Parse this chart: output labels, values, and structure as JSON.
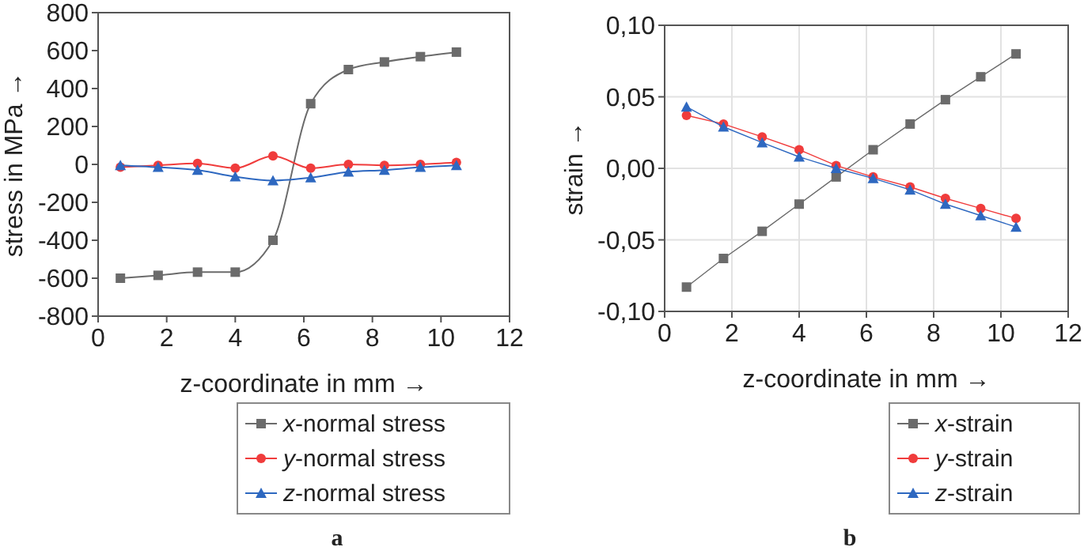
{
  "chart_data": [
    {
      "type": "line",
      "xlabel": "z-coordinate in mm →",
      "ylabel": "stress in MPa →",
      "xlim": [
        0,
        12
      ],
      "xticks": [
        0,
        2,
        4,
        6,
        8,
        10,
        12
      ],
      "ylim": [
        -800,
        800
      ],
      "yticks": [
        -800,
        -600,
        -400,
        -200,
        0,
        200,
        400,
        600,
        800
      ],
      "grid": false,
      "legend": "bottom right",
      "annotations": [
        "a"
      ],
      "x": [
        0.65,
        1.75,
        2.9,
        4.0,
        5.1,
        6.2,
        7.3,
        8.35,
        9.4,
        10.45
      ],
      "series": [
        {
          "name": "x-normal stress",
          "color": "#6b6b6b",
          "marker": "square",
          "values": [
            -600,
            -585,
            -568,
            -568,
            -400,
            320,
            500,
            540,
            568,
            592
          ]
        },
        {
          "name": "y-normal stress",
          "color": "#f03c3c",
          "marker": "circle",
          "values": [
            -15,
            -5,
            5,
            -20,
            45,
            -20,
            0,
            -5,
            0,
            10
          ]
        },
        {
          "name": "z-normal stress",
          "color": "#2e68c0",
          "marker": "triangle",
          "values": [
            -5,
            -15,
            -30,
            -65,
            -85,
            -70,
            -40,
            -30,
            -15,
            -5
          ]
        }
      ]
    },
    {
      "type": "line",
      "xlabel": "z-coordinate in mm →",
      "ylabel": "strain →",
      "xlim": [
        0,
        12
      ],
      "xticks": [
        0,
        2,
        4,
        6,
        8,
        10,
        12
      ],
      "ylim": [
        -0.1,
        0.1
      ],
      "yticks": [
        {
          "value": -0.1,
          "label": "-0,10"
        },
        {
          "value": -0.05,
          "label": "-0,05"
        },
        {
          "value": 0,
          "label": "0,00"
        },
        {
          "value": 0.05,
          "label": "0,05"
        },
        {
          "value": 0.1,
          "label": "0,10"
        }
      ],
      "grid": true,
      "legend": "bottom right",
      "annotations": [
        "b"
      ],
      "x": [
        0.65,
        1.75,
        2.9,
        4.0,
        5.1,
        6.2,
        7.3,
        8.35,
        9.4,
        10.45
      ],
      "series": [
        {
          "name": "x-strain",
          "color": "#6b6b6b",
          "marker": "square",
          "values": [
            -0.083,
            -0.063,
            -0.044,
            -0.025,
            -0.006,
            0.013,
            0.031,
            0.048,
            0.064,
            0.08
          ]
        },
        {
          "name": "y-strain",
          "color": "#f03c3c",
          "marker": "circle",
          "values": [
            0.037,
            0.031,
            0.022,
            0.013,
            0.002,
            -0.006,
            -0.013,
            -0.021,
            -0.028,
            -0.035
          ]
        },
        {
          "name": "z-strain",
          "color": "#2e68c0",
          "marker": "triangle",
          "values": [
            0.043,
            0.029,
            0.018,
            0.008,
            0.0,
            -0.007,
            -0.015,
            -0.025,
            -0.033,
            -0.041
          ]
        }
      ]
    }
  ]
}
